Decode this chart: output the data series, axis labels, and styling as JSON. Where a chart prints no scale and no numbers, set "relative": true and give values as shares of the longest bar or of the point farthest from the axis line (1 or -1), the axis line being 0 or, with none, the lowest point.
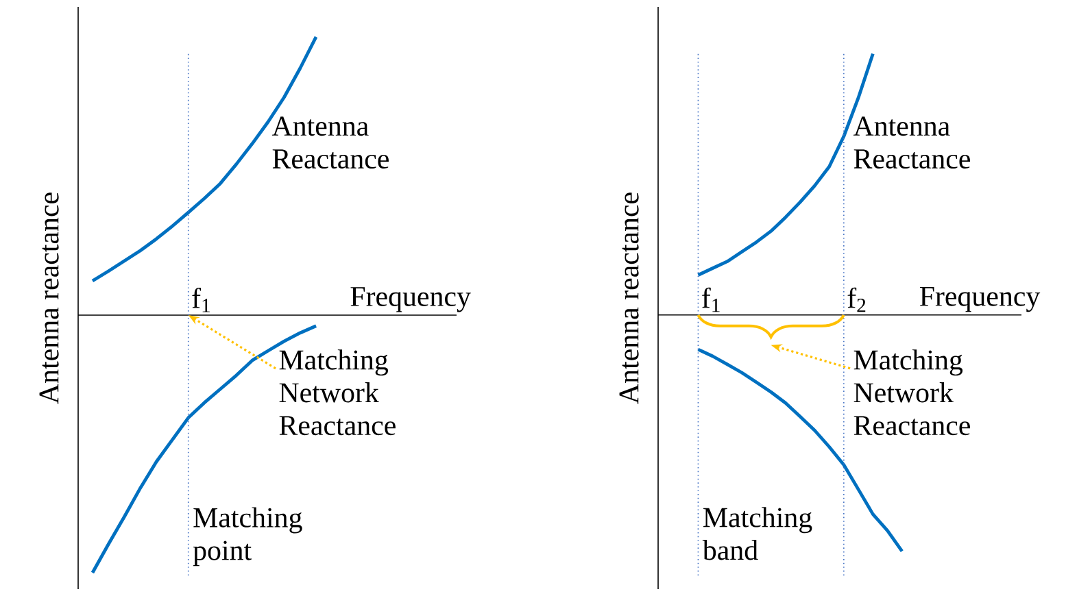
{
  "chart_data": [
    {
      "type": "line",
      "ylabel": "Antenna reactance",
      "xlabel": "Frequency",
      "relative": true,
      "categories": [
        null,
        null,
        null,
        null,
        null,
        null,
        null,
        null,
        null,
        null,
        null,
        null,
        null,
        null,
        null,
        null,
        null,
        null,
        null,
        null,
        null,
        null,
        null,
        null,
        null
      ],
      "series": [
        {
          "color": "#0070c0",
          "values": [
            0.123,
            0.158,
            0.195,
            0.232,
            0.274,
            0.32,
            0.369,
            0.419,
            0.473,
            0.542,
            0.616,
            0.695,
            0.783,
            0.887,
            1.0,
            null,
            null,
            null,
            null,
            null,
            null,
            null,
            null,
            null,
            null
          ]
        },
        {
          "color": "#0070c0",
          "values": [
            -0.926,
            -0.823,
            -0.724,
            -0.621,
            -0.527,
            -0.448,
            -0.369,
            -0.315,
            -0.266,
            -0.217,
            -0.163,
            -0.128,
            -0.094,
            -0.064,
            -0.039,
            null,
            null,
            null,
            null,
            null,
            null,
            null,
            null,
            null,
            null
          ]
        }
      ],
      "annotations": [
        "Antenna Reactance",
        "Matching Network Reactance",
        "Matching point",
        "f$_{1}$"
      ]
    },
    {
      "type": "line",
      "ylabel": "Antenna reactance",
      "xlabel": "Frequency",
      "relative": true,
      "categories": [
        null,
        null,
        null,
        null,
        null,
        null,
        null,
        null,
        null,
        null,
        null,
        null,
        null,
        null,
        null,
        null,
        null,
        null,
        null,
        null,
        null,
        null,
        null,
        null
      ],
      "series": [
        {
          "color": "#0070c0",
          "values": [
            0.153,
            0.179,
            0.205,
            0.242,
            0.279,
            0.321,
            0.374,
            0.432,
            0.495,
            0.568,
            0.684,
            0.832,
            1.0,
            null,
            null,
            null,
            null,
            null,
            null,
            null,
            null,
            null,
            null,
            null
          ]
        },
        {
          "color": "#0070c0",
          "values": [
            -0.132,
            -0.158,
            -0.189,
            -0.221,
            -0.258,
            -0.295,
            -0.337,
            -0.389,
            -0.442,
            -0.505,
            -0.574,
            -0.668,
            -0.763,
            -0.826,
            -0.905,
            null,
            null,
            null,
            null,
            null,
            null,
            null,
            null,
            null
          ]
        }
      ],
      "annotations": [
        "Antenna Reactance",
        "Matching Network Reactance",
        "Matching band",
        "f$_{1}$",
        "f$_{2}$"
      ]
    }
  ]
}
